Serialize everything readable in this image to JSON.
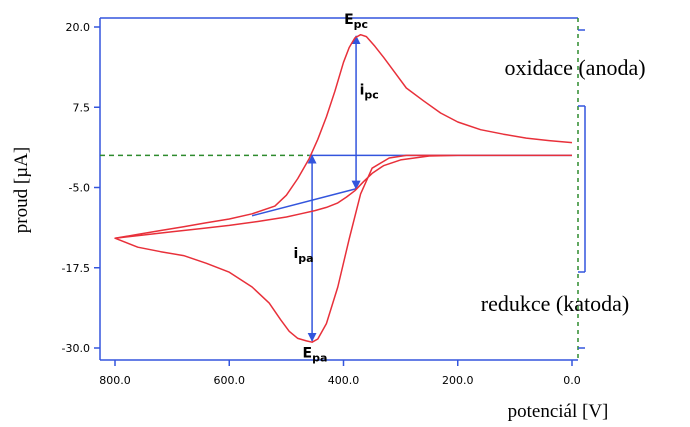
{
  "chart_data": {
    "type": "line",
    "title": "",
    "xlabel": "potenciál [V]",
    "ylabel": "proud [µA]",
    "x_reversed": true,
    "xlim": [
      820,
      -5
    ],
    "ylim": [
      -31,
      22
    ],
    "x_ticks": [
      "800.0",
      "600.0",
      "400.0",
      "200.0",
      "0.0"
    ],
    "x_tick_values": [
      800,
      600,
      400,
      200,
      0
    ],
    "y_ticks": [
      "20.0",
      "7.5",
      "-5.0",
      "-17.5",
      "-30.0"
    ],
    "y_tick_values": [
      20,
      7.5,
      -5,
      -17.5,
      -30
    ],
    "grid": false,
    "series": [
      {
        "color": "#e8303a",
        "x": [
          0,
          50,
          100,
          150,
          200,
          250,
          300,
          330,
          350,
          365,
          380,
          395,
          410,
          430,
          450,
          475,
          500,
          550,
          600,
          650,
          700,
          750,
          800,
          760,
          720,
          680,
          640,
          600,
          560,
          530,
          510,
          495,
          480,
          465,
          455,
          445,
          430,
          410,
          390,
          370,
          350,
          320,
          290,
          250,
          200,
          150,
          100,
          50,
          0
        ],
        "y": [
          0,
          0,
          0,
          0,
          0,
          -0.1,
          -0.7,
          -1.6,
          -2.8,
          -4.1,
          -5.5,
          -6.5,
          -7.4,
          -8.1,
          -8.6,
          -9.1,
          -9.6,
          -10.3,
          -10.9,
          -11.4,
          -11.9,
          -12.4,
          -12.9,
          -14.3,
          -15.0,
          -15.6,
          -16.8,
          -18.2,
          -20.5,
          -23.0,
          -25.6,
          -27.4,
          -28.5,
          -28.9,
          -29.1,
          -28.6,
          -26.2,
          -20.5,
          -13.0,
          -6.0,
          -2.0,
          -0.4,
          0,
          0,
          0,
          0,
          0,
          0,
          0
        ],
        "y2": [],
        "note": ""
      },
      {
        "color": "#e8303a",
        "x": [
          800,
          760,
          720,
          680,
          640,
          600,
          560,
          520,
          500,
          480,
          460,
          445,
          430,
          415,
          400,
          390,
          380,
          370,
          360,
          345,
          330,
          310,
          290,
          260,
          230,
          200,
          160,
          120,
          80,
          40,
          0
        ],
        "y": [
          -12.9,
          -12.3,
          -11.7,
          -11.1,
          -10.5,
          -9.9,
          -9.1,
          -7.9,
          -6.2,
          -3.6,
          -0.5,
          2.5,
          6.0,
          10.0,
          14.5,
          16.8,
          18.3,
          18.8,
          18.5,
          17.0,
          15.3,
          12.9,
          10.5,
          8.5,
          6.6,
          5.2,
          4.0,
          3.3,
          2.7,
          2.3,
          2.0
        ]
      }
    ],
    "annotations": [
      {
        "label": "E",
        "sub": "pc",
        "x": 378,
        "y": 20.5
      },
      {
        "label": "i",
        "sub": "pc",
        "x": 355,
        "y": 9.5
      },
      {
        "label": "i",
        "sub": "pa",
        "x": 470,
        "y": -16
      },
      {
        "label": "E",
        "sub": "pa",
        "x": 450,
        "y": -31.5
      }
    ],
    "side_labels": {
      "oxidation": "oxidace (anoda)",
      "reduction": "redukce (katoda)"
    },
    "colors": {
      "axis": "#3355dd",
      "curve": "#e8303a",
      "baseline_dashed": "#2e8b2e",
      "helper_lines": "#3355dd"
    }
  }
}
